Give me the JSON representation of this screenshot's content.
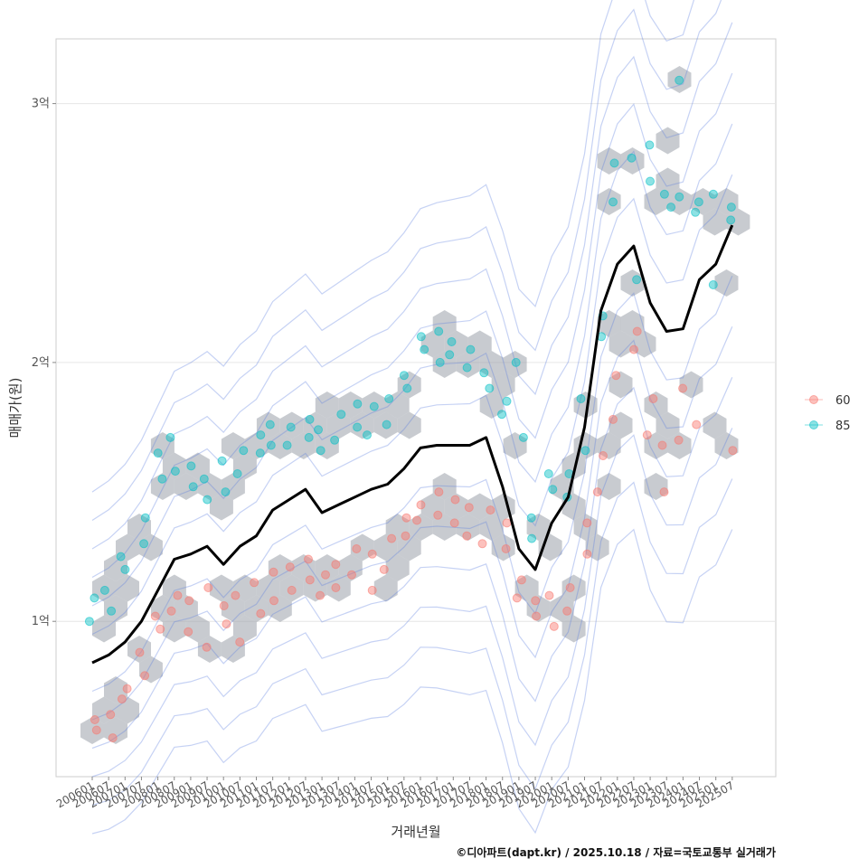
{
  "chart_data": {
    "type": "scatter",
    "xlabel": "거래년월",
    "ylabel": "매매가(원)",
    "caption": "©디아파트(dapt.kr) / 2025.10.18 / 자료=국토교통부 실거래가",
    "y_ticks": [
      {
        "value": 100000000,
        "label": "1억"
      },
      {
        "value": 200000000,
        "label": "2억"
      },
      {
        "value": 300000000,
        "label": "3억"
      }
    ],
    "ylim": [
      40000000,
      325000000
    ],
    "x_ticks": [
      "200601",
      "200607",
      "200701",
      "200707",
      "200801",
      "200807",
      "200901",
      "200907",
      "201001",
      "201007",
      "201101",
      "201107",
      "201201",
      "201207",
      "201301",
      "201307",
      "201401",
      "201407",
      "201501",
      "201507",
      "201601",
      "201607",
      "201701",
      "201707",
      "201801",
      "201807",
      "201901",
      "201907",
      "202001",
      "202007",
      "202101",
      "202107",
      "202201",
      "202207",
      "202301",
      "202307",
      "202401",
      "202407",
      "202501",
      "202507"
    ],
    "legend": [
      {
        "name": "60",
        "color": "#F8766D"
      },
      {
        "name": "85",
        "color": "#00BFC4"
      }
    ],
    "trend_line": {
      "name": "moving average",
      "color": "#000000",
      "x": [
        "200601",
        "200607",
        "200701",
        "200707",
        "200801",
        "200807",
        "200901",
        "200907",
        "201001",
        "201007",
        "201101",
        "201107",
        "201201",
        "201207",
        "201301",
        "201307",
        "201401",
        "201407",
        "201501",
        "201507",
        "201601",
        "201607",
        "201701",
        "201707",
        "201801",
        "201807",
        "201901",
        "201907",
        "202001",
        "202007",
        "202101",
        "202107",
        "202201",
        "202207",
        "202301",
        "202307",
        "202401",
        "202407",
        "202501",
        "202507"
      ],
      "values": [
        84000000,
        87000000,
        92000000,
        100000000,
        112000000,
        124000000,
        126000000,
        129000000,
        122000000,
        129000000,
        133000000,
        143000000,
        147000000,
        151000000,
        142000000,
        145000000,
        148000000,
        151000000,
        153000000,
        159000000,
        167000000,
        168000000,
        168000000,
        168000000,
        171000000,
        152000000,
        128000000,
        120000000,
        138000000,
        148000000,
        175000000,
        220000000,
        238000000,
        245000000,
        223000000,
        212000000,
        213000000,
        232000000,
        238000000,
        253000000
      ]
    },
    "series": [
      {
        "name": "60",
        "points": [
          [
            "200601",
            62000000
          ],
          [
            "200601",
            58000000
          ],
          [
            "200607",
            55000000
          ],
          [
            "200607",
            64000000
          ],
          [
            "200701",
            70000000
          ],
          [
            "200701",
            74000000
          ],
          [
            "200707",
            79000000
          ],
          [
            "200707",
            88000000
          ],
          [
            "200801",
            97000000
          ],
          [
            "200801",
            102000000
          ],
          [
            "200807",
            104000000
          ],
          [
            "200807",
            110000000
          ],
          [
            "200901",
            96000000
          ],
          [
            "200901",
            108000000
          ],
          [
            "200907",
            90000000
          ],
          [
            "200907",
            113000000
          ],
          [
            "201001",
            99000000
          ],
          [
            "201001",
            106000000
          ],
          [
            "201007",
            92000000
          ],
          [
            "201007",
            110000000
          ],
          [
            "201101",
            103000000
          ],
          [
            "201101",
            115000000
          ],
          [
            "201107",
            108000000
          ],
          [
            "201107",
            119000000
          ],
          [
            "201201",
            112000000
          ],
          [
            "201201",
            121000000
          ],
          [
            "201207",
            116000000
          ],
          [
            "201207",
            124000000
          ],
          [
            "201301",
            110000000
          ],
          [
            "201301",
            118000000
          ],
          [
            "201307",
            113000000
          ],
          [
            "201307",
            122000000
          ],
          [
            "201401",
            118000000
          ],
          [
            "201401",
            128000000
          ],
          [
            "201407",
            112000000
          ],
          [
            "201407",
            126000000
          ],
          [
            "201501",
            120000000
          ],
          [
            "201501",
            132000000
          ],
          [
            "201507",
            133000000
          ],
          [
            "201507",
            140000000
          ],
          [
            "201601",
            139000000
          ],
          [
            "201601",
            145000000
          ],
          [
            "201607",
            141000000
          ],
          [
            "201607",
            150000000
          ],
          [
            "201701",
            138000000
          ],
          [
            "201701",
            147000000
          ],
          [
            "201707",
            133000000
          ],
          [
            "201707",
            144000000
          ],
          [
            "201801",
            130000000
          ],
          [
            "201801",
            143000000
          ],
          [
            "201807",
            138000000
          ],
          [
            "201807",
            128000000
          ],
          [
            "201901",
            109000000
          ],
          [
            "201901",
            116000000
          ],
          [
            "201907",
            102000000
          ],
          [
            "201907",
            108000000
          ],
          [
            "202001",
            98000000
          ],
          [
            "202001",
            110000000
          ],
          [
            "202007",
            104000000
          ],
          [
            "202007",
            113000000
          ],
          [
            "202101",
            126000000
          ],
          [
            "202101",
            138000000
          ],
          [
            "202107",
            150000000
          ],
          [
            "202107",
            164000000
          ],
          [
            "202201",
            178000000
          ],
          [
            "202201",
            195000000
          ],
          [
            "202207",
            205000000
          ],
          [
            "202207",
            212000000
          ],
          [
            "202301",
            186000000
          ],
          [
            "202301",
            172000000
          ],
          [
            "202307",
            150000000
          ],
          [
            "202307",
            168000000
          ],
          [
            "202401",
            170000000
          ],
          [
            "202401",
            190000000
          ],
          [
            "202407",
            176000000
          ],
          [
            "202507",
            166000000
          ]
        ]
      },
      {
        "name": "85",
        "points": [
          [
            "200601",
            100000000
          ],
          [
            "200601",
            109000000
          ],
          [
            "200607",
            104000000
          ],
          [
            "200607",
            112000000
          ],
          [
            "200701",
            120000000
          ],
          [
            "200701",
            125000000
          ],
          [
            "200707",
            140000000
          ],
          [
            "200707",
            130000000
          ],
          [
            "200801",
            155000000
          ],
          [
            "200801",
            165000000
          ],
          [
            "200807",
            158000000
          ],
          [
            "200807",
            171000000
          ],
          [
            "200901",
            152000000
          ],
          [
            "200901",
            160000000
          ],
          [
            "200907",
            155000000
          ],
          [
            "200907",
            147000000
          ],
          [
            "201001",
            150000000
          ],
          [
            "201001",
            162000000
          ],
          [
            "201007",
            157000000
          ],
          [
            "201007",
            166000000
          ],
          [
            "201101",
            165000000
          ],
          [
            "201101",
            172000000
          ],
          [
            "201107",
            168000000
          ],
          [
            "201107",
            176000000
          ],
          [
            "201201",
            168000000
          ],
          [
            "201201",
            175000000
          ],
          [
            "201207",
            171000000
          ],
          [
            "201207",
            178000000
          ],
          [
            "201301",
            166000000
          ],
          [
            "201301",
            174000000
          ],
          [
            "201307",
            170000000
          ],
          [
            "201307",
            180000000
          ],
          [
            "201401",
            175000000
          ],
          [
            "201401",
            184000000
          ],
          [
            "201407",
            172000000
          ],
          [
            "201407",
            183000000
          ],
          [
            "201501",
            176000000
          ],
          [
            "201501",
            186000000
          ],
          [
            "201507",
            190000000
          ],
          [
            "201507",
            195000000
          ],
          [
            "201601",
            205000000
          ],
          [
            "201601",
            210000000
          ],
          [
            "201607",
            200000000
          ],
          [
            "201607",
            212000000
          ],
          [
            "201701",
            203000000
          ],
          [
            "201701",
            208000000
          ],
          [
            "201707",
            198000000
          ],
          [
            "201707",
            205000000
          ],
          [
            "201801",
            190000000
          ],
          [
            "201801",
            196000000
          ],
          [
            "201807",
            185000000
          ],
          [
            "201807",
            180000000
          ],
          [
            "201901",
            171000000
          ],
          [
            "201901",
            200000000
          ],
          [
            "201907",
            140000000
          ],
          [
            "201907",
            132000000
          ],
          [
            "202001",
            157000000
          ],
          [
            "202001",
            151000000
          ],
          [
            "202007",
            148000000
          ],
          [
            "202007",
            157000000
          ],
          [
            "202101",
            166000000
          ],
          [
            "202101",
            186000000
          ],
          [
            "202107",
            218000000
          ],
          [
            "202107",
            210000000
          ],
          [
            "202201",
            262000000
          ],
          [
            "202201",
            277000000
          ],
          [
            "202207",
            279000000
          ],
          [
            "202207",
            232000000
          ],
          [
            "202301",
            284000000
          ],
          [
            "202301",
            270000000
          ],
          [
            "202307",
            260000000
          ],
          [
            "202307",
            265000000
          ],
          [
            "202401",
            309000000
          ],
          [
            "202401",
            264000000
          ],
          [
            "202407",
            258000000
          ],
          [
            "202407",
            262000000
          ],
          [
            "202501",
            265000000
          ],
          [
            "202501",
            230000000
          ],
          [
            "202507",
            255000000
          ],
          [
            "202507",
            260000000
          ]
        ]
      }
    ]
  }
}
